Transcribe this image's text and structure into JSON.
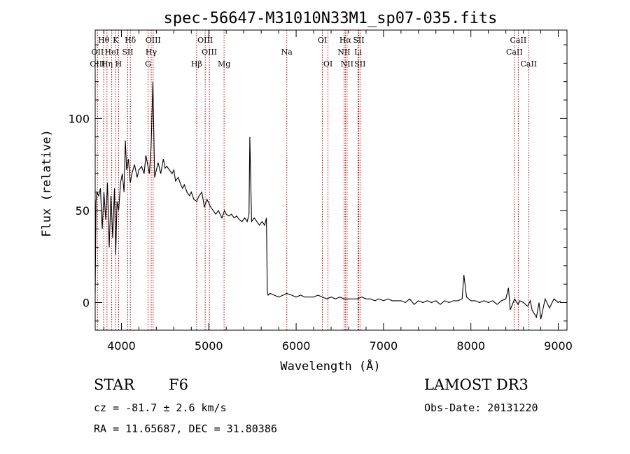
{
  "title": "spec-56647-M31010N33M1_sp07-035.fits",
  "chart_data": {
    "type": "line",
    "title": "spec-56647-M31010N33M1_sp07-035.fits",
    "xlabel": "Wavelength (Å)",
    "ylabel": "Flux (relative)",
    "xlim": [
      3700,
      9100
    ],
    "ylim": [
      -15,
      148
    ],
    "xticks": [
      4000,
      5000,
      6000,
      7000,
      8000,
      9000
    ],
    "yticks": [
      0,
      50,
      100
    ],
    "x": [
      3700,
      3710,
      3720,
      3740,
      3760,
      3780,
      3800,
      3820,
      3840,
      3860,
      3880,
      3900,
      3920,
      3935,
      3950,
      3968,
      3990,
      4010,
      4030,
      4045,
      4060,
      4080,
      4101,
      4120,
      4150,
      4180,
      4200,
      4230,
      4260,
      4280,
      4300,
      4320,
      4340,
      4360,
      4380,
      4400,
      4420,
      4450,
      4480,
      4500,
      4520,
      4550,
      4580,
      4600,
      4620,
      4650,
      4680,
      4700,
      4720,
      4750,
      4780,
      4800,
      4830,
      4861,
      4890,
      4920,
      4950,
      4980,
      5000,
      5020,
      5050,
      5080,
      5110,
      5150,
      5180,
      5200,
      5230,
      5260,
      5290,
      5320,
      5350,
      5380,
      5410,
      5440,
      5460,
      5470,
      5490,
      5520,
      5550,
      5580,
      5610,
      5640,
      5660,
      5670,
      5680,
      5700,
      5750,
      5800,
      5850,
      5890,
      5950,
      6000,
      6050,
      6100,
      6150,
      6200,
      6250,
      6300,
      6350,
      6400,
      6450,
      6500,
      6550,
      6600,
      6650,
      6700,
      6750,
      6800,
      6850,
      6900,
      6950,
      7000,
      7050,
      7100,
      7150,
      7200,
      7250,
      7300,
      7350,
      7400,
      7450,
      7500,
      7550,
      7600,
      7650,
      7700,
      7750,
      7800,
      7850,
      7900,
      7920,
      7950,
      8000,
      8050,
      8100,
      8150,
      8200,
      8250,
      8300,
      8350,
      8400,
      8430,
      8450,
      8500,
      8540,
      8560,
      8600,
      8650,
      8680,
      8700,
      8750,
      8780,
      8800,
      8850,
      8900,
      8950,
      9000,
      9030
    ],
    "y": [
      5,
      55,
      60,
      58,
      62,
      40,
      60,
      45,
      65,
      30,
      58,
      35,
      62,
      26,
      55,
      50,
      65,
      70,
      60,
      88,
      72,
      78,
      65,
      70,
      75,
      68,
      72,
      74,
      70,
      80,
      75,
      70,
      85,
      120,
      68,
      72,
      76,
      70,
      78,
      73,
      74,
      72,
      70,
      72,
      66,
      68,
      64,
      62,
      64,
      60,
      58,
      60,
      56,
      55,
      58,
      60,
      52,
      56,
      54,
      52,
      50,
      48,
      50,
      46,
      50,
      48,
      47,
      48,
      46,
      47,
      45,
      44,
      46,
      44,
      48,
      90,
      44,
      46,
      44,
      42,
      44,
      42,
      46,
      6,
      4,
      5,
      4,
      3,
      4,
      5,
      4,
      3,
      4,
      3,
      3,
      3,
      4,
      3,
      2,
      3,
      2,
      3,
      2,
      2,
      2,
      2,
      3,
      2,
      2,
      1,
      2,
      1,
      2,
      1,
      1,
      1,
      0,
      2,
      -1,
      1,
      0,
      1,
      0,
      1,
      -1,
      1,
      0,
      1,
      1,
      2,
      15,
      3,
      1,
      1,
      0,
      1,
      0,
      1,
      -1,
      1,
      2,
      8,
      -4,
      2,
      -1,
      1,
      0,
      -2,
      1,
      -4,
      -8,
      0,
      -9,
      2,
      -3,
      2,
      0,
      1
    ],
    "spectral_lines": [
      {
        "label": "Hθ",
        "wavelength": 3797,
        "row": 1
      },
      {
        "label": "OII",
        "wavelength": 3727,
        "row": 2
      },
      {
        "label": "OIII",
        "wavelength": 3727,
        "row": 3
      },
      {
        "label": "K",
        "wavelength": 3934,
        "row": 1
      },
      {
        "label": "HeI",
        "wavelength": 3889,
        "row": 2
      },
      {
        "label": "Hη",
        "wavelength": 3835,
        "row": 3
      },
      {
        "label": "Hδ",
        "wavelength": 4102,
        "row": 1
      },
      {
        "label": "SII",
        "wavelength": 4072,
        "row": 2
      },
      {
        "label": "H",
        "wavelength": 3968,
        "row": 3
      },
      {
        "label": "OIII",
        "wavelength": 4363,
        "row": 1
      },
      {
        "label": "Hγ",
        "wavelength": 4341,
        "row": 2
      },
      {
        "label": "G",
        "wavelength": 4305,
        "row": 3
      },
      {
        "label": "OIII",
        "wavelength": 4959,
        "row": 1
      },
      {
        "label": "OIII",
        "wavelength": 5007,
        "row": 2
      },
      {
        "label": "Hβ",
        "wavelength": 4861,
        "row": 3
      },
      {
        "label": "Mg",
        "wavelength": 5175,
        "row": 3
      },
      {
        "label": "Na",
        "wavelength": 5893,
        "row": 2
      },
      {
        "label": "OI",
        "wavelength": 6300,
        "row": 1
      },
      {
        "label": "OI",
        "wavelength": 6364,
        "row": 3
      },
      {
        "label": "Hα",
        "wavelength": 6563,
        "row": 1
      },
      {
        "label": "SII",
        "wavelength": 6716,
        "row": 1
      },
      {
        "label": "NII",
        "wavelength": 6548,
        "row": 2
      },
      {
        "label": "Li",
        "wavelength": 6708,
        "row": 2
      },
      {
        "label": "NII",
        "wavelength": 6583,
        "row": 3
      },
      {
        "label": "SII",
        "wavelength": 6731,
        "row": 3
      },
      {
        "label": "CaII",
        "wavelength": 8542,
        "row": 1
      },
      {
        "label": "CaII",
        "wavelength": 8498,
        "row": 2
      },
      {
        "label": "CaII",
        "wavelength": 8662,
        "row": 3
      }
    ]
  },
  "info": {
    "class": "STAR",
    "subclass": "F6",
    "survey": "LAMOST DR3",
    "cz": "cz = -81.7 ± 2.6 km/s",
    "obs_date": "Obs-Date: 20131220",
    "coords": "RA =  11.65687, DEC =  31.80386"
  }
}
